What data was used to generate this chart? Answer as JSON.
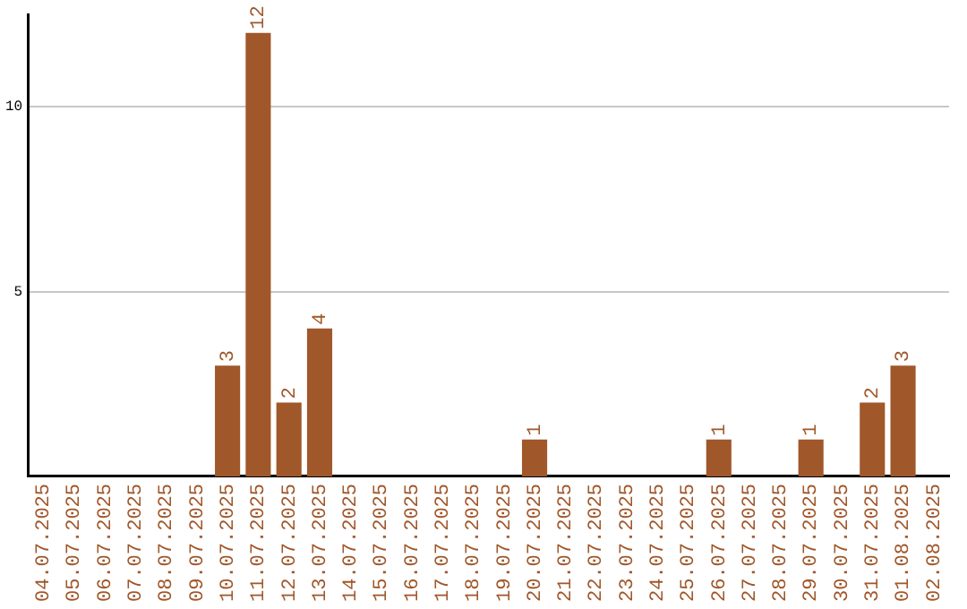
{
  "chart_data": {
    "type": "bar",
    "categories": [
      "04.07.2025",
      "05.07.2025",
      "06.07.2025",
      "07.07.2025",
      "08.07.2025",
      "09.07.2025",
      "10.07.2025",
      "11.07.2025",
      "12.07.2025",
      "13.07.2025",
      "14.07.2025",
      "15.07.2025",
      "16.07.2025",
      "17.07.2025",
      "18.07.2025",
      "19.07.2025",
      "20.07.2025",
      "21.07.2025",
      "22.07.2025",
      "23.07.2025",
      "24.07.2025",
      "25.07.2025",
      "26.07.2025",
      "27.07.2025",
      "28.07.2025",
      "29.07.2025",
      "30.07.2025",
      "31.07.2025",
      "01.08.2025",
      "02.08.2025"
    ],
    "values": [
      0,
      0,
      0,
      0,
      0,
      0,
      3,
      12,
      2,
      4,
      0,
      0,
      0,
      0,
      0,
      0,
      1,
      0,
      0,
      0,
      0,
      0,
      1,
      0,
      0,
      1,
      0,
      2,
      3,
      0
    ],
    "value_labels": [
      null,
      null,
      null,
      null,
      null,
      null,
      "3",
      "12",
      "2",
      "4",
      null,
      null,
      null,
      null,
      null,
      null,
      "1",
      null,
      null,
      null,
      null,
      null,
      "1",
      null,
      null,
      "1",
      null,
      "2",
      "3",
      null
    ],
    "color": "#a0572a",
    "ylim": [
      0,
      12.5
    ],
    "yticks": [
      5,
      10
    ],
    "grid": "y",
    "legend": false
  }
}
